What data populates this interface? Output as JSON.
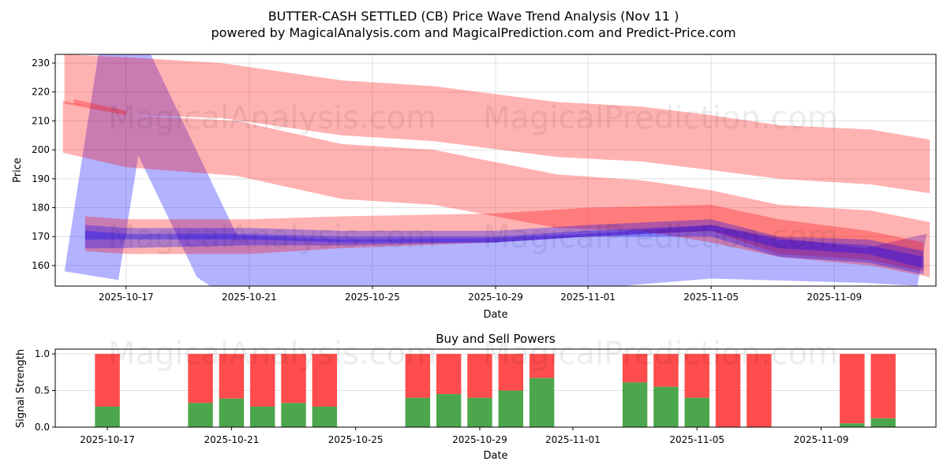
{
  "title": "BUTTER-CASH SETTLED (CB) Price Wave Trend Analysis (Nov 11 )",
  "subtitle": "powered by MagicalAnalysis.com and MagicalPrediction.com and Predict-Price.com",
  "watermarks": [
    "MagicalAnalysis.com",
    "MagicalPrediction.com"
  ],
  "chart_data": [
    {
      "type": "area",
      "title": "",
      "xlabel": "Date",
      "ylabel": "Price",
      "x_reference_date": "2025-10-17",
      "xlim_days": [
        -2.3,
        26.3
      ],
      "ylim": [
        152.9,
        233
      ],
      "grid": true,
      "xticks": [
        {
          "day": 0,
          "label": "2025-10-17"
        },
        {
          "day": 4,
          "label": "2025-10-21"
        },
        {
          "day": 8,
          "label": "2025-10-25"
        },
        {
          "day": 12,
          "label": "2025-10-29"
        },
        {
          "day": 15,
          "label": "2025-11-01"
        },
        {
          "day": 19,
          "label": "2025-11-05"
        },
        {
          "day": 23,
          "label": "2025-11-09"
        }
      ],
      "yticks": [
        160,
        170,
        180,
        190,
        200,
        210,
        220,
        230
      ],
      "bands": [
        {
          "color": "red",
          "x": [
            -2.0,
            0,
            3.1,
            7,
            10,
            14,
            16.7,
            19,
            21.2,
            24.2,
            26.1
          ],
          "upper": [
            233,
            232,
            230,
            224,
            222,
            216.5,
            215,
            212,
            208.5,
            207,
            203.5
          ],
          "lower": [
            216,
            212,
            211,
            205,
            203,
            197.5,
            196,
            193,
            190,
            188,
            185
          ]
        },
        {
          "color": "red",
          "x": [
            -2.05,
            0,
            3.6,
            7,
            10,
            14,
            16.7,
            19,
            21.2,
            24.2,
            26.1
          ],
          "upper": [
            217,
            212,
            210,
            202,
            200,
            191.5,
            189.5,
            186,
            181,
            179,
            175
          ],
          "lower": [
            199,
            194,
            191,
            183,
            181,
            173,
            172,
            168,
            163,
            160,
            156
          ]
        },
        {
          "color": "red",
          "x": [
            -1.33,
            0,
            4,
            7,
            12,
            15,
            19,
            21.2,
            24.1,
            25.9
          ],
          "upper": [
            177,
            176,
            176,
            177,
            178,
            180,
            181,
            176,
            172,
            168
          ],
          "lower": [
            165,
            164,
            164,
            166,
            168,
            170,
            172,
            164,
            162,
            158
          ]
        },
        {
          "color": "blue",
          "x": [
            -1.33,
            0,
            4,
            7,
            12,
            15,
            19,
            21.2,
            24.1,
            25.9
          ],
          "upper": [
            174,
            173,
            173,
            172,
            172,
            174,
            176,
            170,
            169,
            165
          ],
          "lower": [
            166,
            166,
            167,
            167,
            168,
            170,
            170,
            163,
            161,
            157
          ]
        },
        {
          "color": "blue",
          "x": [
            -1.33,
            0,
            4,
            7,
            12,
            15,
            19,
            21.2,
            24.1,
            25.9
          ],
          "upper": [
            172,
            171,
            171,
            170,
            170,
            172,
            174,
            169,
            167,
            163
          ],
          "lower": [
            169,
            169,
            169,
            168,
            168,
            170,
            172,
            166,
            164,
            159
          ]
        },
        {
          "color": "red",
          "x": [
            -1.7,
            0
          ],
          "upper": [
            217.5,
            213.5
          ],
          "lower": [
            216,
            212
          ]
        }
      ],
      "polygons": [
        {
          "color": "blue",
          "points": [
            [
              -2.0,
              158
            ],
            [
              -0.9,
              233
            ],
            [
              0.8,
              233
            ],
            [
              3.6,
              170.5
            ],
            [
              7,
              169
            ],
            [
              12,
              169.5
            ],
            [
              15,
              171
            ],
            [
              19,
              174
            ],
            [
              21,
              170
            ],
            [
              24,
              166
            ],
            [
              26,
              171
            ],
            [
              25.7,
              153
            ],
            [
              24,
              154
            ],
            [
              19,
              155.5
            ],
            [
              15,
              152
            ],
            [
              12,
              151
            ],
            [
              3,
              151
            ],
            [
              2.3,
              156
            ],
            [
              0.4,
              198
            ],
            [
              -0.25,
              155
            ]
          ]
        }
      ]
    },
    {
      "type": "bar",
      "title": "Buy and Sell Powers",
      "xlabel": "Date",
      "ylabel": "Signal Strength",
      "x_reference_date": "2025-10-17",
      "xlim_days": [
        -1.68,
        26.7
      ],
      "ylim": [
        0,
        1.065
      ],
      "grid": true,
      "xticks": [
        {
          "day": 0,
          "label": "2025-10-17"
        },
        {
          "day": 4,
          "label": "2025-10-21"
        },
        {
          "day": 8,
          "label": "2025-10-25"
        },
        {
          "day": 12,
          "label": "2025-10-29"
        },
        {
          "day": 15,
          "label": "2025-11-01"
        },
        {
          "day": 19,
          "label": "2025-11-05"
        },
        {
          "day": 23,
          "label": "2025-11-09"
        }
      ],
      "yticks": [
        "0.0",
        "0.5",
        "1.0"
      ],
      "series": [
        {
          "name": "Buy",
          "color": "#4ca64c"
        },
        {
          "name": "Sell",
          "color": "#ff4c4c"
        }
      ],
      "bars": [
        {
          "day": 0,
          "buy": 0.28
        },
        {
          "day": 3,
          "buy": 0.33
        },
        {
          "day": 4,
          "buy": 0.39
        },
        {
          "day": 5,
          "buy": 0.28
        },
        {
          "day": 6,
          "buy": 0.33
        },
        {
          "day": 7,
          "buy": 0.28
        },
        {
          "day": 10,
          "buy": 0.4
        },
        {
          "day": 11,
          "buy": 0.45
        },
        {
          "day": 12,
          "buy": 0.4
        },
        {
          "day": 13,
          "buy": 0.5
        },
        {
          "day": 14,
          "buy": 0.67
        },
        {
          "day": 17,
          "buy": 0.61
        },
        {
          "day": 18,
          "buy": 0.55
        },
        {
          "day": 19,
          "buy": 0.4
        },
        {
          "day": 20,
          "buy": 0.0
        },
        {
          "day": 21,
          "buy": 0.0
        },
        {
          "day": 24,
          "buy": 0.05
        },
        {
          "day": 25,
          "buy": 0.12
        }
      ]
    }
  ]
}
